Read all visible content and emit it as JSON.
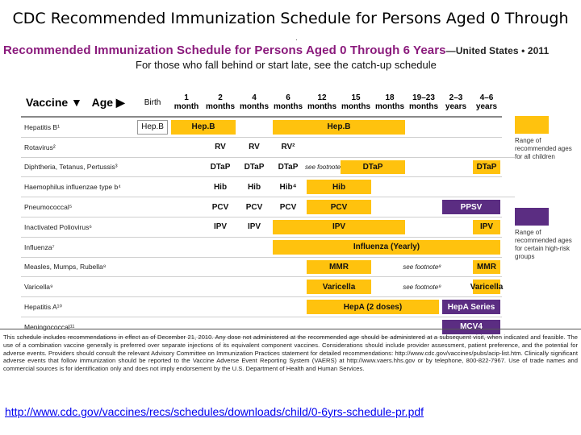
{
  "slide_title": "CDC Recommended Immunization Schedule for Persons Aged 0 Through",
  "poster": {
    "heading": "Recommended Immunization Schedule for Persons Aged 0 Through 6 Years",
    "country": "—United States • 2011",
    "subtitle": "For those who fall behind or start late, see the catch-up schedule"
  },
  "table": {
    "vaccine_header": "Vaccine ▼",
    "age_header": "Age ▶",
    "ages": [
      {
        "l1": "Birth",
        "l2": ""
      },
      {
        "l1": "1",
        "l2": "month"
      },
      {
        "l1": "2",
        "l2": "months"
      },
      {
        "l1": "4",
        "l2": "months"
      },
      {
        "l1": "6",
        "l2": "months"
      },
      {
        "l1": "12",
        "l2": "months"
      },
      {
        "l1": "15",
        "l2": "months"
      },
      {
        "l1": "18",
        "l2": "months"
      },
      {
        "l1": "19–23",
        "l2": "months"
      },
      {
        "l1": "2–3",
        "l2": "years"
      },
      {
        "l1": "4–6",
        "l2": "years"
      }
    ],
    "vaccines": [
      "Hepatitis B¹",
      "Rotavirus²",
      "Diphtheria, Tetanus, Pertussis³",
      "Haemophilus influenzae type b⁴",
      "Pneumococcal⁵",
      "Inactivated Poliovirus⁶",
      "Influenza⁷",
      "Measles, Mumps, Rubella⁸",
      "Varicella⁹",
      "Hepatitis A¹⁰",
      "Meningococcal¹¹"
    ],
    "cells": {
      "hepb_birth": "Hep.B",
      "hepb_1_2": "Hep.B",
      "hepb_6_18": "Hep.B",
      "rv_2": "RV",
      "rv_4": "RV",
      "rv_6": "RV²",
      "dtap_2": "DTaP",
      "dtap_4": "DTaP",
      "dtap_6": "DTaP",
      "dtap_note": "see footnote³",
      "dtap_15_18": "DTaP",
      "dtap_46": "DTaP",
      "hib_2": "Hib",
      "hib_4": "Hib",
      "hib_6": "Hib⁴",
      "hib_12": "Hib",
      "pcv_2": "PCV",
      "pcv_4": "PCV",
      "pcv_6": "PCV",
      "pcv_12": "PCV",
      "ppsv": "PPSV",
      "ipv_2": "IPV",
      "ipv_4": "IPV",
      "ipv_6_18": "IPV",
      "ipv_46": "IPV",
      "flu": "Influenza (Yearly)",
      "mmr_12": "MMR",
      "mmr_note": "see footnote⁸",
      "mmr_46": "MMR",
      "var_12": "Varicella",
      "var_note": "see footnote⁹",
      "var_46": "Varicella",
      "hepa": "HepA (2 doses)",
      "hepa_series": "HepA Series",
      "mcv4": "MCV4"
    }
  },
  "legend": {
    "all_children": "Range of recommended ages for all children",
    "high_risk": "Range of recommended ages for certain high-risk groups",
    "yellow": "#ffc20e",
    "purple": "#5b2d82"
  },
  "footer_text": "This schedule includes recommendations in effect as of December 21, 2010. Any dose not administered at the recommended age should be administered at a subsequent visit, when indicated and feasible. The use of a combination vaccine generally is preferred over separate injections of its equivalent component vaccines. Considerations should include provider assessment, patient preference, and the potential for adverse events. Providers should consult the relevant Advisory Committee on Immunization Practices statement for detailed recommendations: http://www.cdc.gov/vaccines/pubs/acip-list.htm. Clinically significant adverse events that follow immunization should be reported to the Vaccine Adverse Event Reporting System (VAERS) at http://www.vaers.hhs.gov or by telephone, 800-822-7967. Use of trade names and commercial sources is for identification only and does not imply endorsement by the U.S. Department of Health and Human Services.",
  "url": "http://www.cdc.gov/vaccines/recs/schedules/downloads/child/0-6yrs-schedule-pr.pdf"
}
